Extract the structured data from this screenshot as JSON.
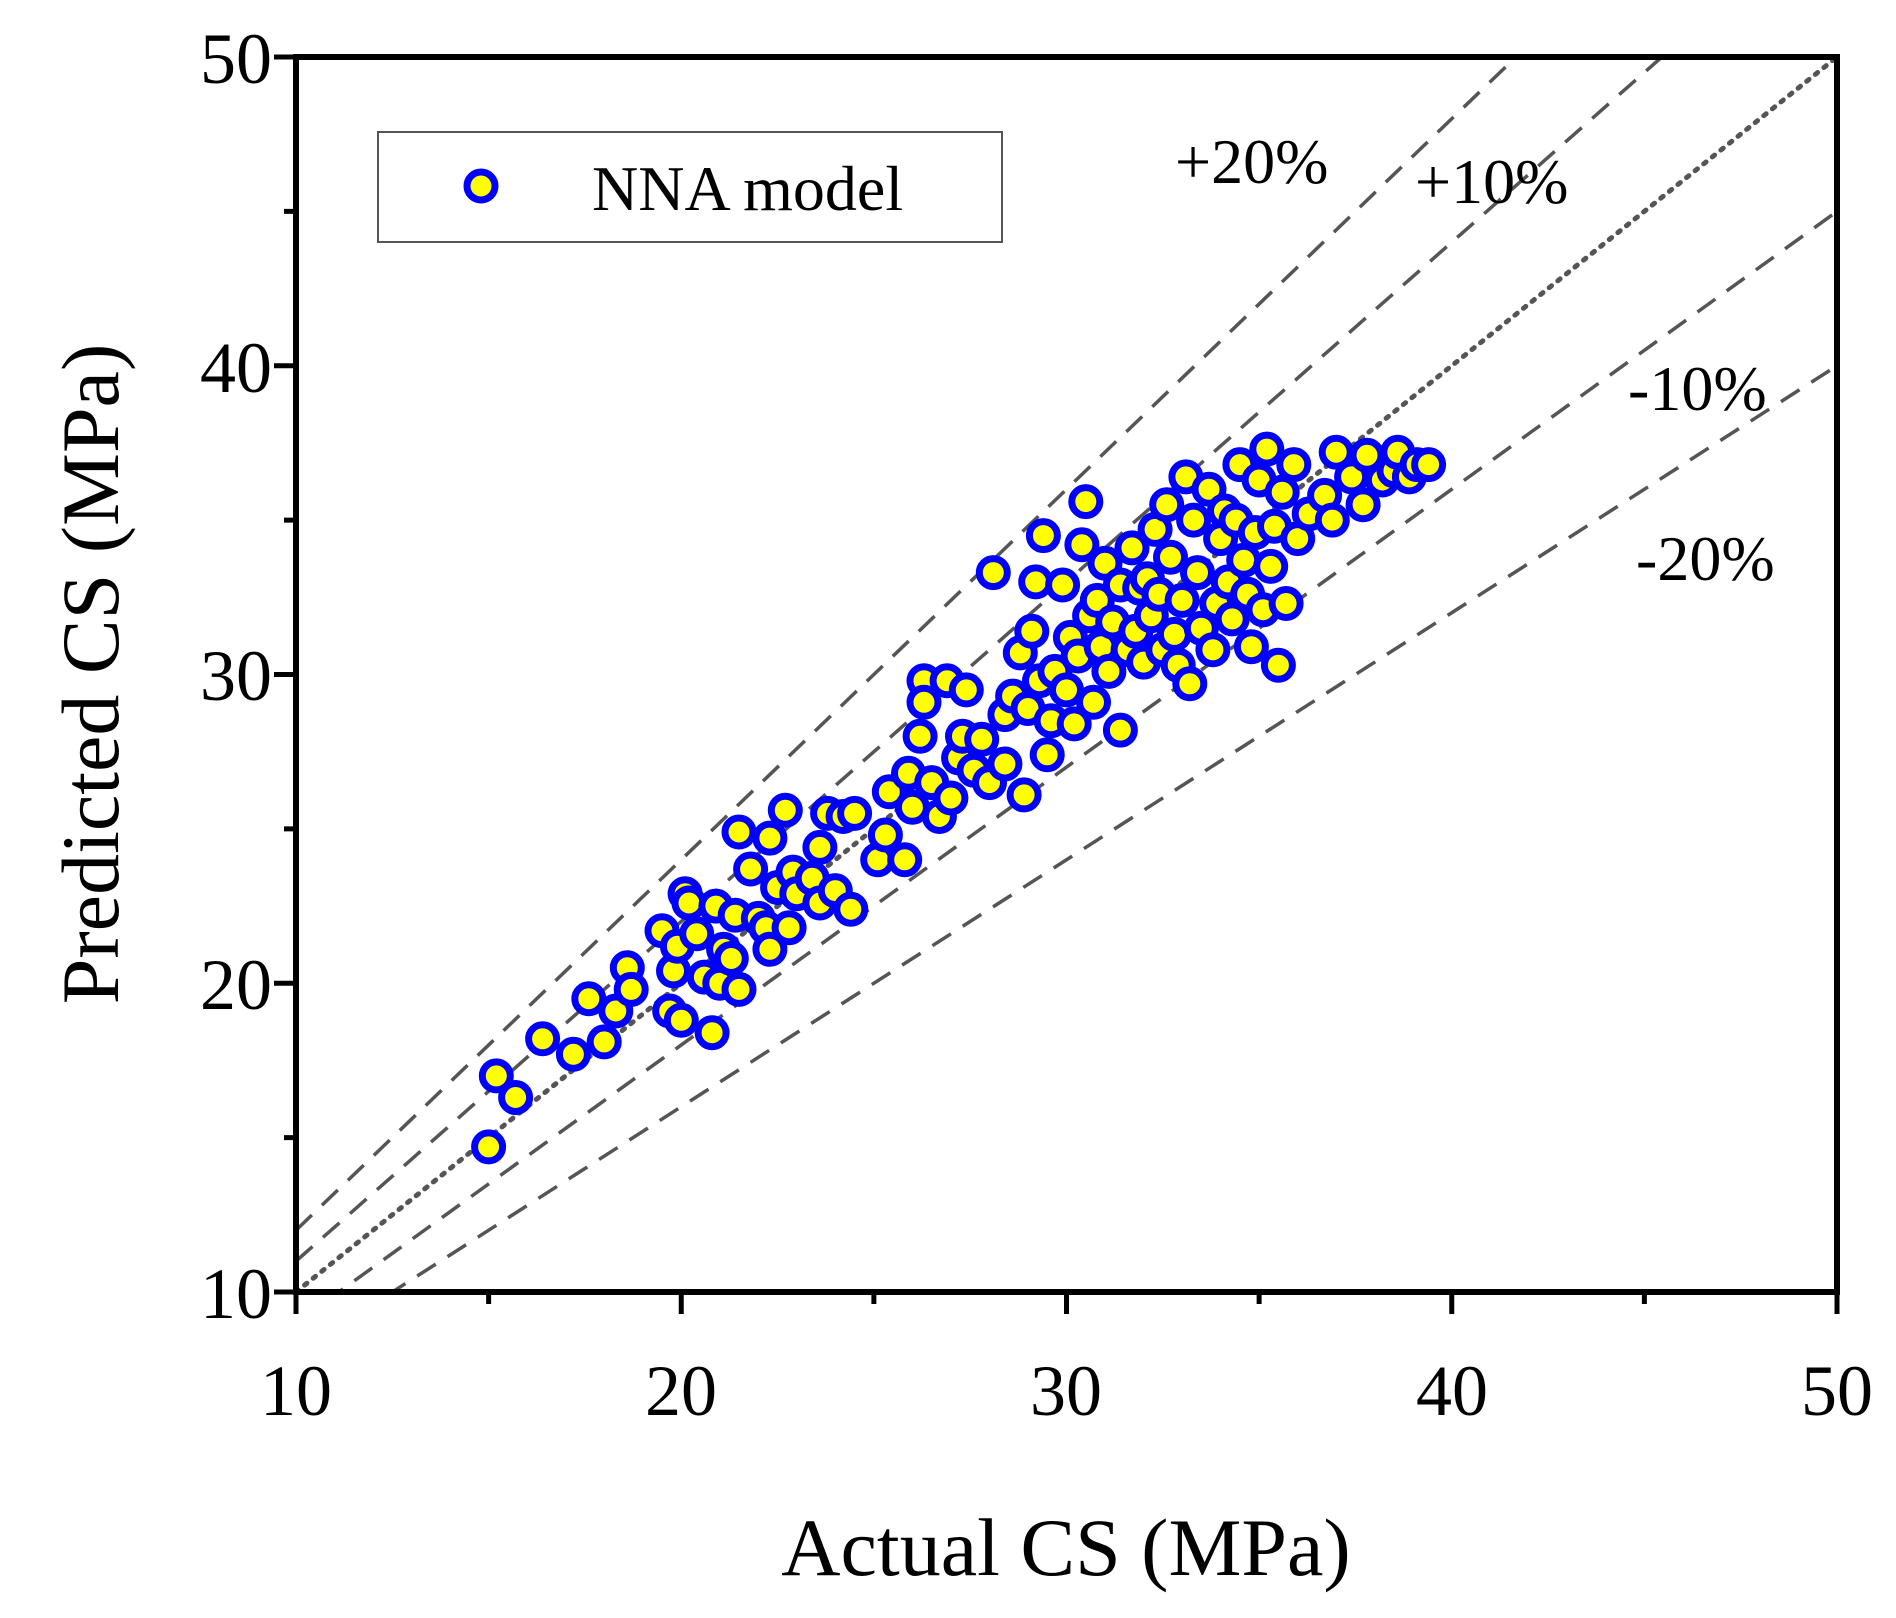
{
  "chart_data": {
    "type": "scatter",
    "xlabel": "Actual CS (MPa)",
    "ylabel": "Predicted CS (MPa)",
    "xlim": [
      10,
      50
    ],
    "ylim": [
      10,
      50
    ],
    "xticks": [
      10,
      20,
      30,
      40,
      50
    ],
    "yticks": [
      10,
      20,
      30,
      40,
      50
    ],
    "grid": false,
    "legend": {
      "position": "top-left",
      "entries": [
        "NNA model"
      ]
    },
    "colors": {
      "marker_fill": "#FFFF00",
      "marker_edge": "#0000FF",
      "reference_line": "#555555"
    },
    "reference_lines": [
      {
        "label": "+20%",
        "slope": 1.2,
        "style": "dashed"
      },
      {
        "label": "+10%",
        "slope": 1.1,
        "style": "dashed"
      },
      {
        "label": "",
        "slope": 1.0,
        "style": "dotted"
      },
      {
        "label": "-10%",
        "slope": 0.9,
        "style": "dashed"
      },
      {
        "label": "-20%",
        "slope": 0.8,
        "style": "dashed"
      }
    ],
    "series": [
      {
        "name": "NNA model",
        "points": [
          [
            15.0,
            14.7
          ],
          [
            15.2,
            17.0
          ],
          [
            15.7,
            16.3
          ],
          [
            16.4,
            18.2
          ],
          [
            17.2,
            17.7
          ],
          [
            17.6,
            19.5
          ],
          [
            18.0,
            18.1
          ],
          [
            18.3,
            19.1
          ],
          [
            18.6,
            20.5
          ],
          [
            18.7,
            19.8
          ],
          [
            19.5,
            21.7
          ],
          [
            19.7,
            19.1
          ],
          [
            19.8,
            20.4
          ],
          [
            19.9,
            21.2
          ],
          [
            20.0,
            18.8
          ],
          [
            20.1,
            22.9
          ],
          [
            20.2,
            22.6
          ],
          [
            20.4,
            21.6
          ],
          [
            20.6,
            20.2
          ],
          [
            20.8,
            18.4
          ],
          [
            20.9,
            22.5
          ],
          [
            21.0,
            20.0
          ],
          [
            21.1,
            21.1
          ],
          [
            21.3,
            20.8
          ],
          [
            21.4,
            22.2
          ],
          [
            21.5,
            19.8
          ],
          [
            21.5,
            24.9
          ],
          [
            21.8,
            23.7
          ],
          [
            22.0,
            22.1
          ],
          [
            22.2,
            21.8
          ],
          [
            22.3,
            24.7
          ],
          [
            22.3,
            21.1
          ],
          [
            22.5,
            23.1
          ],
          [
            22.7,
            25.6
          ],
          [
            22.8,
            21.8
          ],
          [
            22.9,
            23.6
          ],
          [
            23.0,
            22.9
          ],
          [
            23.4,
            23.4
          ],
          [
            23.6,
            24.4
          ],
          [
            23.6,
            22.6
          ],
          [
            23.8,
            25.5
          ],
          [
            24.0,
            23.0
          ],
          [
            24.2,
            25.4
          ],
          [
            24.4,
            22.4
          ],
          [
            24.5,
            25.5
          ],
          [
            25.1,
            24.0
          ],
          [
            25.3,
            24.8
          ],
          [
            25.4,
            26.2
          ],
          [
            25.8,
            24.0
          ],
          [
            25.9,
            26.8
          ],
          [
            26.0,
            25.7
          ],
          [
            26.2,
            28.0
          ],
          [
            26.3,
            29.8
          ],
          [
            26.3,
            29.1
          ],
          [
            26.5,
            26.5
          ],
          [
            26.7,
            25.4
          ],
          [
            26.9,
            29.8
          ],
          [
            27.0,
            26.0
          ],
          [
            27.2,
            27.3
          ],
          [
            27.3,
            28.0
          ],
          [
            27.4,
            29.5
          ],
          [
            27.6,
            26.9
          ],
          [
            27.8,
            27.9
          ],
          [
            28.0,
            26.5
          ],
          [
            28.1,
            33.3
          ],
          [
            28.4,
            27.1
          ],
          [
            28.4,
            28.7
          ],
          [
            28.6,
            29.3
          ],
          [
            28.8,
            30.7
          ],
          [
            28.9,
            26.1
          ],
          [
            29.0,
            28.9
          ],
          [
            29.1,
            31.4
          ],
          [
            29.2,
            33.0
          ],
          [
            29.3,
            29.8
          ],
          [
            29.4,
            34.5
          ],
          [
            29.5,
            27.4
          ],
          [
            29.6,
            28.5
          ],
          [
            29.7,
            30.1
          ],
          [
            29.9,
            32.9
          ],
          [
            30.0,
            29.5
          ],
          [
            30.1,
            31.2
          ],
          [
            30.2,
            28.4
          ],
          [
            30.3,
            30.6
          ],
          [
            30.4,
            34.2
          ],
          [
            30.5,
            35.6
          ],
          [
            30.6,
            31.9
          ],
          [
            30.7,
            29.1
          ],
          [
            30.8,
            32.4
          ],
          [
            30.9,
            30.9
          ],
          [
            31.0,
            33.6
          ],
          [
            31.1,
            30.1
          ],
          [
            31.2,
            31.7
          ],
          [
            31.4,
            28.2
          ],
          [
            31.4,
            32.9
          ],
          [
            31.6,
            30.8
          ],
          [
            31.7,
            34.1
          ],
          [
            31.8,
            31.4
          ],
          [
            31.9,
            32.8
          ],
          [
            32.0,
            30.4
          ],
          [
            32.1,
            33.1
          ],
          [
            32.2,
            31.9
          ],
          [
            32.3,
            34.7
          ],
          [
            32.4,
            32.6
          ],
          [
            32.5,
            30.8
          ],
          [
            32.6,
            35.5
          ],
          [
            32.7,
            33.8
          ],
          [
            32.8,
            31.3
          ],
          [
            32.9,
            30.3
          ],
          [
            33.0,
            32.4
          ],
          [
            33.1,
            36.4
          ],
          [
            33.2,
            29.7
          ],
          [
            33.3,
            35.0
          ],
          [
            33.4,
            33.3
          ],
          [
            33.5,
            31.5
          ],
          [
            33.7,
            36.0
          ],
          [
            33.8,
            30.8
          ],
          [
            33.9,
            32.3
          ],
          [
            34.0,
            34.4
          ],
          [
            34.1,
            35.3
          ],
          [
            34.2,
            33.0
          ],
          [
            34.3,
            31.8
          ],
          [
            34.4,
            35.0
          ],
          [
            34.5,
            36.8
          ],
          [
            34.6,
            33.7
          ],
          [
            34.7,
            32.6
          ],
          [
            34.8,
            30.9
          ],
          [
            34.9,
            34.6
          ],
          [
            35.0,
            36.3
          ],
          [
            35.1,
            32.1
          ],
          [
            35.2,
            37.3
          ],
          [
            35.3,
            33.5
          ],
          [
            35.4,
            34.8
          ],
          [
            35.5,
            30.3
          ],
          [
            35.6,
            35.9
          ],
          [
            35.7,
            32.3
          ],
          [
            35.9,
            36.8
          ],
          [
            36.0,
            34.4
          ],
          [
            36.3,
            35.2
          ],
          [
            36.7,
            35.8
          ],
          [
            36.9,
            35.0
          ],
          [
            37.0,
            37.2
          ],
          [
            37.4,
            36.4
          ],
          [
            37.7,
            35.5
          ],
          [
            37.8,
            37.1
          ],
          [
            38.2,
            36.3
          ],
          [
            38.5,
            36.6
          ],
          [
            38.6,
            37.2
          ],
          [
            38.9,
            36.4
          ],
          [
            39.1,
            36.8
          ],
          [
            39.4,
            36.8
          ]
        ]
      }
    ]
  }
}
